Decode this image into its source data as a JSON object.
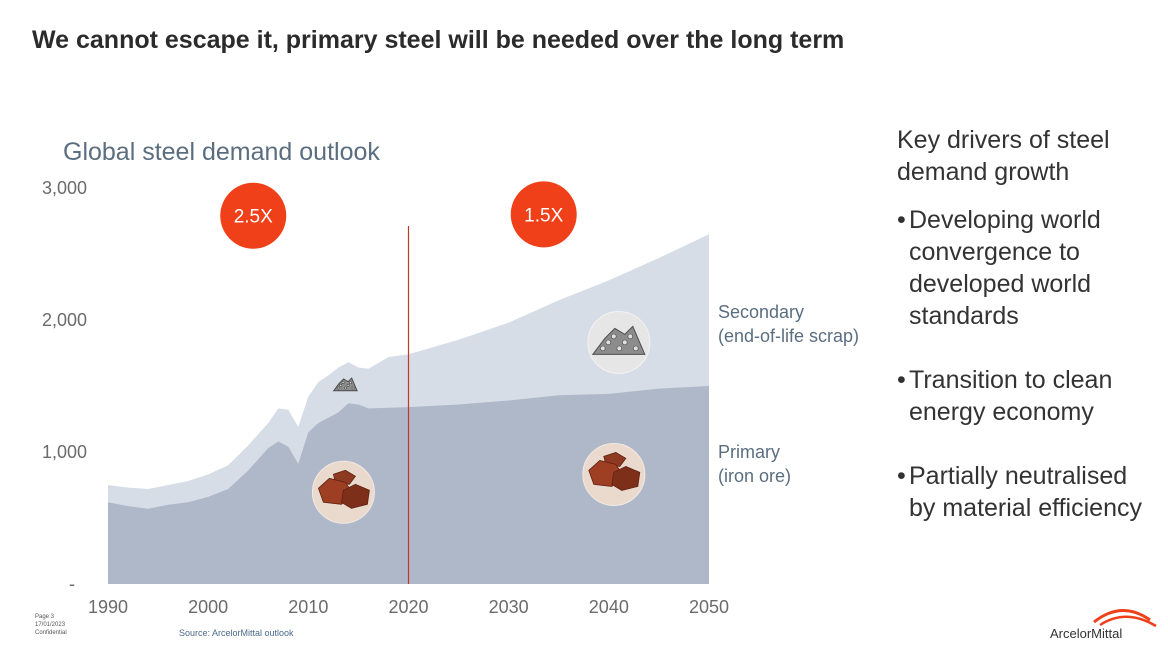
{
  "slide": {
    "title": "We cannot escape it, primary steel will be needed over the long term"
  },
  "chart_data": {
    "type": "area",
    "title": "Global steel demand outlook",
    "x": [
      1990,
      1992,
      1994,
      1996,
      1998,
      2000,
      2002,
      2004,
      2006,
      2007,
      2008,
      2009,
      2010,
      2011,
      2012,
      2013,
      2014,
      2015,
      2016,
      2018,
      2020,
      2025,
      2030,
      2035,
      2040,
      2045,
      2050
    ],
    "series": [
      {
        "name": "Primary (iron ore)",
        "values": [
          620,
          590,
          570,
          600,
          620,
          660,
          720,
          860,
          1030,
          1080,
          1040,
          910,
          1150,
          1220,
          1260,
          1300,
          1370,
          1360,
          1330,
          1335,
          1340,
          1360,
          1390,
          1430,
          1440,
          1480,
          1500
        ],
        "color": "#aeb8c9"
      },
      {
        "name": "Secondary (end-of-life scrap)",
        "values": [
          750,
          730,
          720,
          750,
          780,
          830,
          900,
          1050,
          1220,
          1330,
          1320,
          1190,
          1420,
          1530,
          1580,
          1640,
          1680,
          1640,
          1630,
          1720,
          1740,
          1850,
          1980,
          2150,
          2300,
          2470,
          2650
        ],
        "color": "#d6dde7"
      }
    ],
    "series_labels": [
      {
        "line1": "Secondary",
        "line2": "(end-of-life scrap)"
      },
      {
        "line1": "Primary",
        "line2": "(iron ore)"
      }
    ],
    "yticks": [
      "3,000",
      "2,000",
      "1,000",
      "-"
    ],
    "xticks": [
      "1990",
      "2000",
      "2010",
      "2020",
      "2030",
      "2040",
      "2050"
    ],
    "ylim": [
      0,
      3000
    ],
    "xlim": [
      1990,
      2050
    ],
    "divider_year": 2020,
    "divider_color": "#c0392b",
    "growth_badges": [
      {
        "label": "2.5X",
        "x": 2004.5,
        "y": 2790
      },
      {
        "label": "1.5X",
        "x": 2033.5,
        "y": 2800
      }
    ],
    "badge_color": "#f0401a",
    "icons": [
      {
        "name": "scrap-pile-small-icon",
        "x": 2013.7,
        "y": 1505,
        "size": "small"
      },
      {
        "name": "iron-ore-icon",
        "x": 2013.5,
        "y": 695,
        "size": "large"
      },
      {
        "name": "scrap-pile-icon",
        "x": 2041,
        "y": 1830,
        "size": "large"
      },
      {
        "name": "iron-ore-icon",
        "x": 2040.5,
        "y": 830,
        "size": "large"
      }
    ]
  },
  "drivers": {
    "heading": "Key drivers of steel demand growth",
    "bullet": "•",
    "items": [
      "Developing world convergence to developed world standards",
      "Transition to clean energy economy",
      "Partially neutralised by material efficiency"
    ]
  },
  "footer": {
    "page": "Page 3",
    "date": "17/01/2023",
    "confidential": "Confidential",
    "source": "Source: ArcelorMittal outlook"
  },
  "logo": {
    "text": "ArcelorMittal",
    "color": "#f0401a"
  }
}
